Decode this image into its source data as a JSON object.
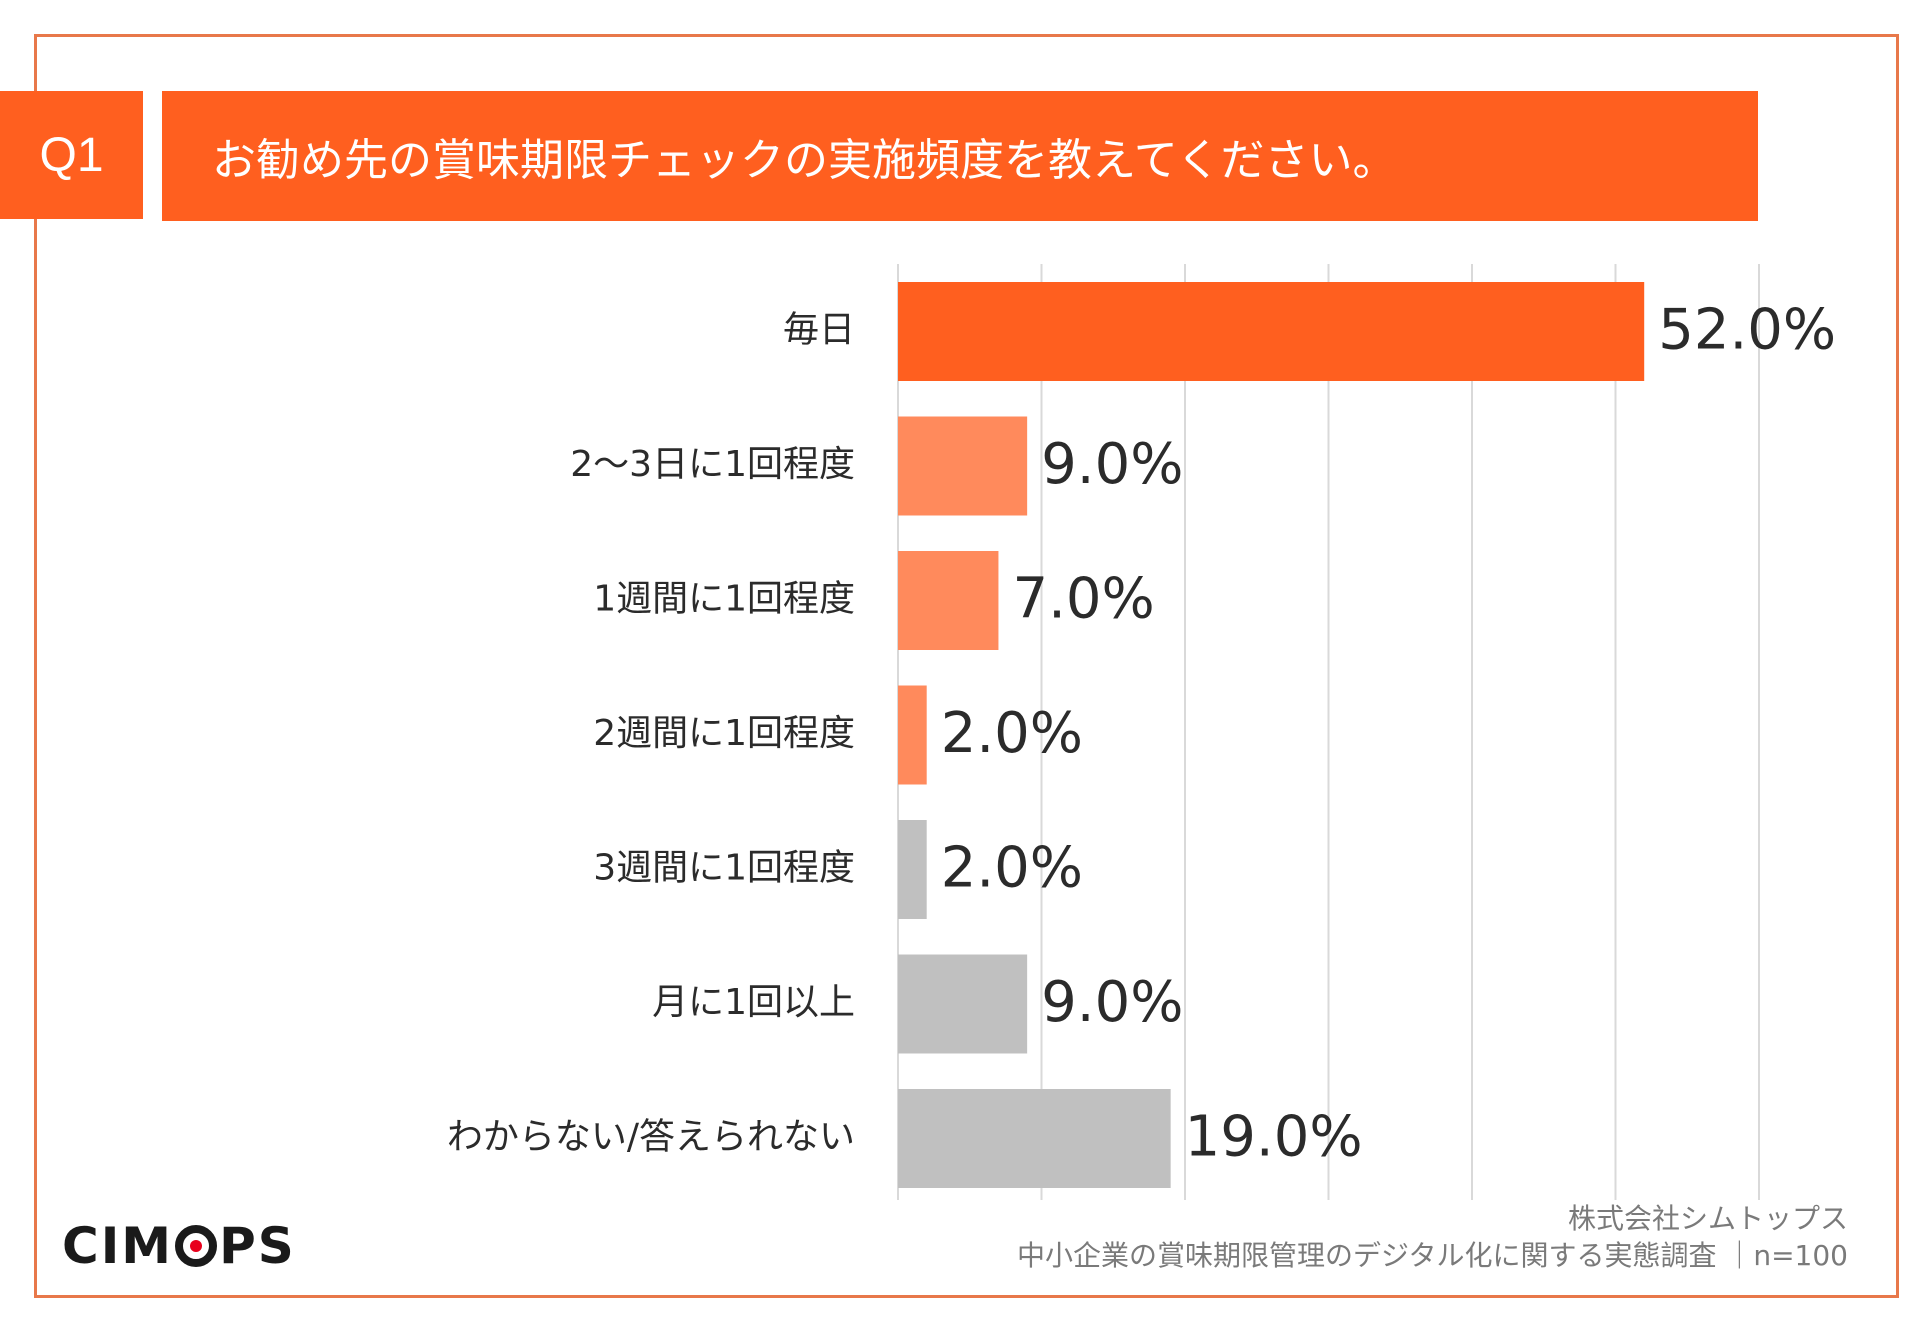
{
  "question": {
    "badge": "Q1",
    "text": "お勧め先の賞味期限チェックの実施頻度を教えてください。"
  },
  "chart_data": {
    "type": "bar",
    "orientation": "horizontal",
    "unit": "%",
    "categories": [
      "毎日",
      "2〜3日に1回程度",
      "1週間に1回程度",
      "2週間に1回程度",
      "3週間に1回程度",
      "月に1回以上",
      "わからない/答えられない"
    ],
    "values": [
      52.0,
      9.0,
      7.0,
      2.0,
      2.0,
      9.0,
      19.0
    ],
    "value_labels": [
      "52.0%",
      "9.0%",
      "7.0%",
      "2.0%",
      "2.0%",
      "9.0%",
      "19.0%"
    ],
    "bar_colors": [
      "#ff5f1f",
      "#ff8a5c",
      "#ff8a5c",
      "#ff8a5c",
      "#c0c0c0",
      "#c0c0c0",
      "#c0c0c0"
    ],
    "xlim": [
      0,
      60
    ],
    "grid": true,
    "gridline_color": "#d9d9d9"
  },
  "source": {
    "company": "株式会社シムトップス",
    "survey": "中小企業の賞味期限管理のデジタル化に関する実態調査 ｜n=100"
  },
  "logo": {
    "before": "CIM",
    "after": "PS"
  },
  "colors": {
    "accent": "#ff5f1f",
    "frame": "#e8784a"
  }
}
